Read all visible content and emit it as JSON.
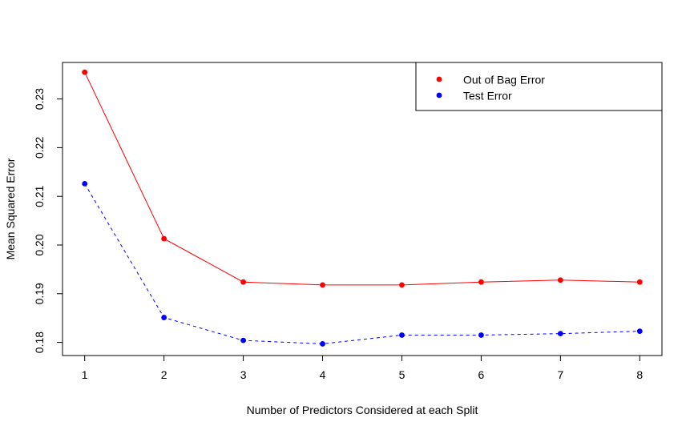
{
  "chart_data": {
    "type": "line",
    "title": "",
    "xlabel": "Number of Predictors Considered at each Split",
    "ylabel": "Mean Squared Error",
    "x": [
      1,
      2,
      3,
      4,
      5,
      6,
      7,
      8
    ],
    "xlim": [
      0.72,
      8.28
    ],
    "ylim": [
      0.1773,
      0.2375
    ],
    "xticks": [
      1,
      2,
      3,
      4,
      5,
      6,
      7,
      8
    ],
    "yticks": [
      0.18,
      0.19,
      0.2,
      0.21,
      0.22,
      0.23
    ],
    "ytick_labels": [
      "0.18",
      "0.19",
      "0.20",
      "0.21",
      "0.22",
      "0.23"
    ],
    "grid": false,
    "legend_position": "top-right",
    "series": [
      {
        "name": "Out of Bag Error",
        "color": "#ff0000",
        "line_style": "solid",
        "values": [
          0.2355,
          0.2013,
          0.1924,
          0.1918,
          0.1918,
          0.1924,
          0.1928,
          0.1924
        ]
      },
      {
        "name": "Test Error",
        "color": "#0000ff",
        "line_style": "dashed",
        "values": [
          0.2126,
          0.1851,
          0.1804,
          0.1797,
          0.1815,
          0.1815,
          0.1818,
          0.1823
        ]
      }
    ]
  }
}
